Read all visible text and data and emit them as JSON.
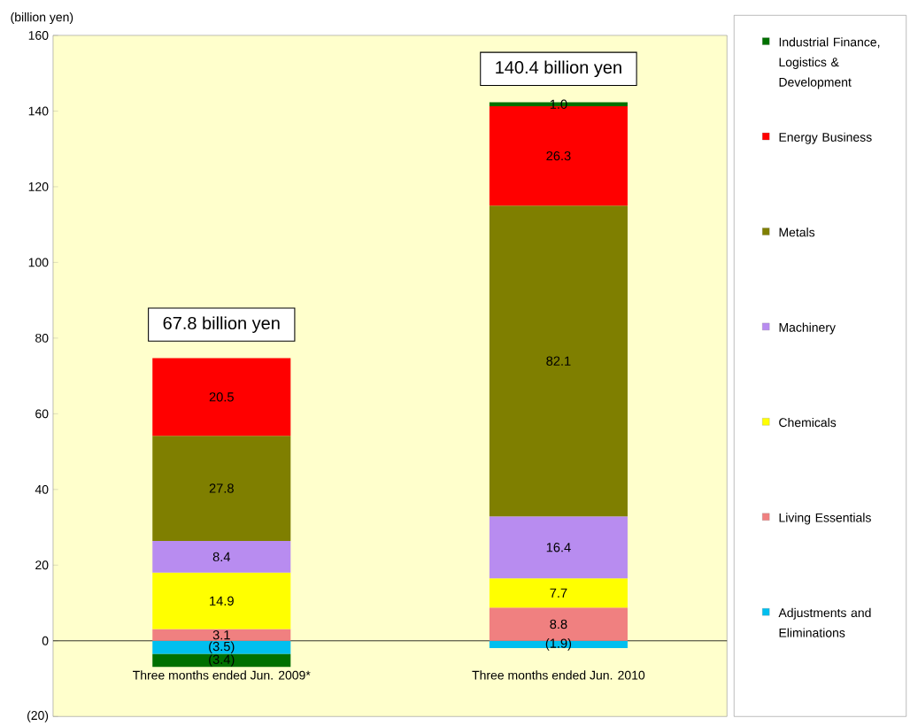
{
  "chart_data": {
    "type": "bar",
    "stacked": true,
    "ylabel": "(billion yen)",
    "categories": [
      "Three months ended Jun. 2009*",
      "Three months ended Jun. 2010"
    ],
    "series": [
      {
        "name": "Adjustments and Eliminations",
        "color": "#00bfef",
        "values": [
          -3.5,
          -1.9
        ],
        "value_labels": [
          "(3.5)",
          "(1.9)"
        ]
      },
      {
        "name": "Living Essentials",
        "color": "#f08080",
        "values": [
          3.1,
          8.8
        ],
        "value_labels": [
          "3.1",
          "8.8"
        ]
      },
      {
        "name": "Chemicals",
        "color": "#ffff00",
        "values": [
          14.9,
          7.7
        ],
        "value_labels": [
          "14.9",
          "7.7"
        ]
      },
      {
        "name": "Machinery",
        "color": "#b88cf0",
        "values": [
          8.4,
          16.4
        ],
        "value_labels": [
          "8.4",
          "16.4"
        ]
      },
      {
        "name": "Metals",
        "color": "#7f7f00",
        "values": [
          27.8,
          82.1
        ],
        "value_labels": [
          "27.8",
          "82.1"
        ]
      },
      {
        "name": "Energy Business",
        "color": "#ff0000",
        "values": [
          20.5,
          26.3
        ],
        "value_labels": [
          "20.5",
          "26.3"
        ]
      },
      {
        "name": "Industrial Finance, Logistics & Development",
        "color": "#007000",
        "values": [
          -3.4,
          1.0
        ],
        "value_labels": [
          "(3.4)",
          "1.0"
        ]
      }
    ],
    "totals": [
      "67.8 billion yen",
      "140.4 billion yen"
    ],
    "ylim": [
      -20,
      160
    ],
    "yticks": [
      {
        "value": -20,
        "label": "(20)"
      },
      0,
      20,
      40,
      60,
      80,
      100,
      120,
      140,
      160
    ],
    "legend": "right"
  }
}
